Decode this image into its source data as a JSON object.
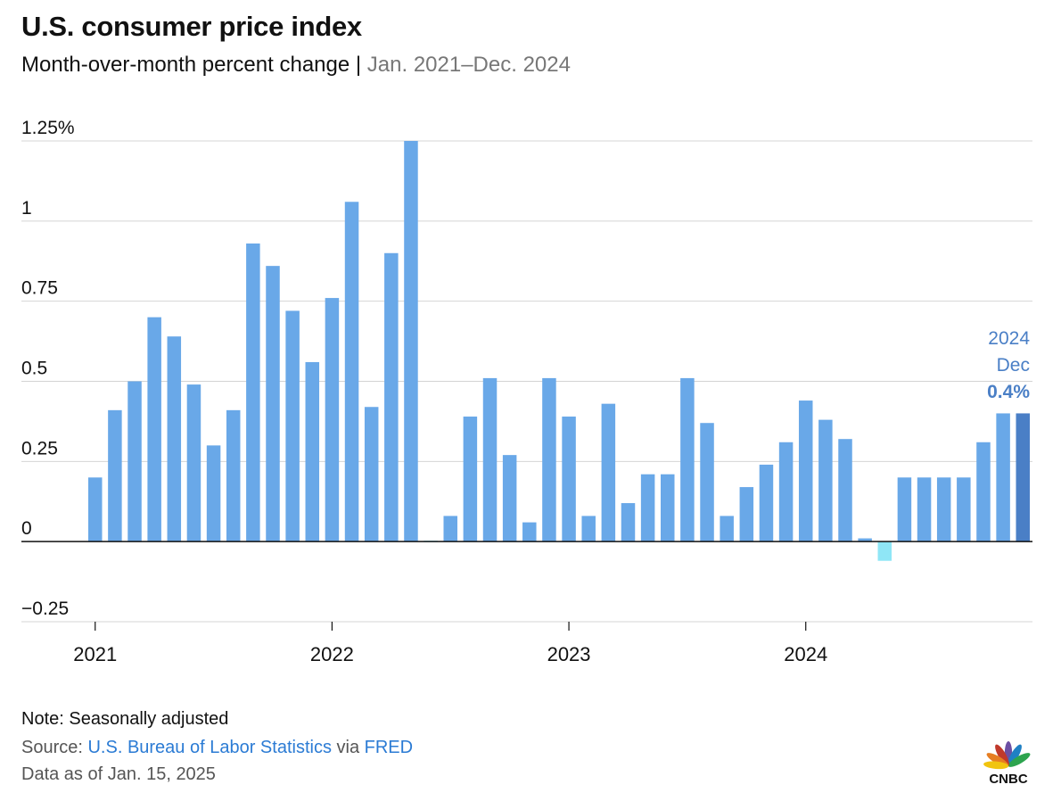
{
  "header": {
    "title": "U.S. consumer price index",
    "subtitle_main": "Month-over-month percent change",
    "subtitle_sep": " | ",
    "subtitle_range": "Jan. 2021–Dec. 2024"
  },
  "colors": {
    "positive": "#69a8e8",
    "negative": "#8fe6f6",
    "highlight": "#4a7fc6",
    "grid": "#d4d4d4",
    "axis": "#111111",
    "annotation": "#4a7fc6"
  },
  "chart_data": {
    "type": "bar",
    "title": "U.S. consumer price index",
    "subtitle": "Month-over-month percent change | Jan. 2021–Dec. 2024",
    "ylim": [
      -0.25,
      1.25
    ],
    "y_ticks": [
      {
        "value": 1.25,
        "label": "1.25%"
      },
      {
        "value": 1,
        "label": "1"
      },
      {
        "value": 0.75,
        "label": "0.75"
      },
      {
        "value": 0.5,
        "label": "0.5"
      },
      {
        "value": 0.25,
        "label": "0.25"
      },
      {
        "value": 0,
        "label": "0"
      },
      {
        "value": -0.25,
        "label": "−0.25"
      }
    ],
    "x_tick_labels": [
      "2021",
      "2022",
      "2023",
      "2024"
    ],
    "categories": [
      "Jan 2021",
      "Feb 2021",
      "Mar 2021",
      "Apr 2021",
      "May 2021",
      "Jun 2021",
      "Jul 2021",
      "Aug 2021",
      "Sep 2021",
      "Oct 2021",
      "Nov 2021",
      "Dec 2021",
      "Jan 2022",
      "Feb 2022",
      "Mar 2022",
      "Apr 2022",
      "May 2022",
      "Jun 2022",
      "Jul 2022",
      "Aug 2022",
      "Sep 2022",
      "Oct 2022",
      "Nov 2022",
      "Dec 2022",
      "Jan 2023",
      "Feb 2023",
      "Mar 2023",
      "Apr 2023",
      "May 2023",
      "Jun 2023",
      "Jul 2023",
      "Aug 2023",
      "Sep 2023",
      "Oct 2023",
      "Nov 2023",
      "Dec 2023",
      "Jan 2024",
      "Feb 2024",
      "Mar 2024",
      "Apr 2024",
      "May 2024",
      "Jun 2024",
      "Jul 2024",
      "Aug 2024",
      "Sep 2024",
      "Oct 2024",
      "Nov 2024",
      "Dec 2024"
    ],
    "values": [
      0.2,
      0.41,
      0.5,
      0.7,
      0.64,
      0.49,
      0.3,
      0.41,
      0.93,
      0.86,
      0.72,
      0.56,
      0.76,
      1.06,
      0.42,
      0.9,
      1.25,
      0.0,
      0.08,
      0.39,
      0.51,
      0.27,
      0.06,
      0.51,
      0.39,
      0.08,
      0.43,
      0.12,
      0.21,
      0.21,
      0.51,
      0.37,
      0.08,
      0.17,
      0.24,
      0.31,
      0.44,
      0.38,
      0.32,
      0.01,
      -0.06,
      0.2,
      0.2,
      0.2,
      0.2,
      0.31,
      0.4,
      0.4
    ],
    "highlight_index": 47,
    "annotation": {
      "year": "2024",
      "month": "Dec",
      "value": "0.4%"
    }
  },
  "footer": {
    "note": "Note: Seasonally adjusted",
    "source_label": "Source: ",
    "source_link": "U.S. Bureau of Labor Statistics",
    "source_via": " via ",
    "source_link2": "FRED",
    "as_of": "Data as of Jan. 15, 2025"
  },
  "logo": {
    "text": "CNBC",
    "icon": "peacock-icon"
  }
}
